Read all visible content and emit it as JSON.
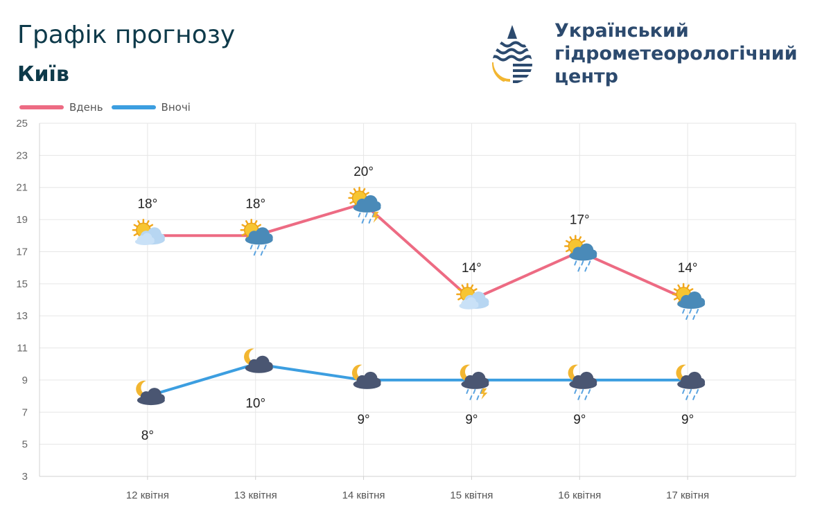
{
  "header": {
    "title": "Графік прогнозу",
    "city": "Київ",
    "org_line1": "Український",
    "org_line2": "гідрометеорологічний",
    "org_line3": "центр"
  },
  "colors": {
    "day": "#ed6b83",
    "night": "#3c9ee0",
    "logo_blue": "#2c4a6e",
    "logo_yellow": "#f2b631"
  },
  "chart_data": {
    "type": "line",
    "title": "Графік прогнозу",
    "subtitle": "Київ",
    "categories": [
      "12 квітня",
      "13 квітня",
      "14 квітня",
      "15 квітня",
      "16 квітня",
      "17 квітня"
    ],
    "series": [
      {
        "name": "Вдень",
        "values": [
          18,
          18,
          20,
          14,
          17,
          14
        ],
        "labels": [
          "18°",
          "18°",
          "20°",
          "14°",
          "17°",
          "14°"
        ],
        "icons": [
          "sun-cloud-icon",
          "sun-rain-cloud-icon",
          "sun-thunder-rain-icon",
          "sun-cloud-icon",
          "sun-rain-cloud-icon",
          "sun-rain-cloud-icon"
        ]
      },
      {
        "name": "Вночі",
        "values": [
          8,
          10,
          9,
          9,
          9,
          9
        ],
        "labels": [
          "8°",
          "10°",
          "9°",
          "9°",
          "9°",
          "9°"
        ],
        "icons": [
          "moon-cloud-icon",
          "moon-cloud-icon",
          "moon-cloud-icon",
          "moon-thunder-rain-icon",
          "moon-rain-cloud-icon",
          "moon-rain-cloud-icon"
        ]
      }
    ],
    "y_ticks": [
      "3",
      "5",
      "7",
      "9",
      "11",
      "13",
      "15",
      "17",
      "19",
      "21",
      "23",
      "25"
    ],
    "ylim": [
      3,
      25
    ],
    "grid": true,
    "legend": "top-left"
  }
}
